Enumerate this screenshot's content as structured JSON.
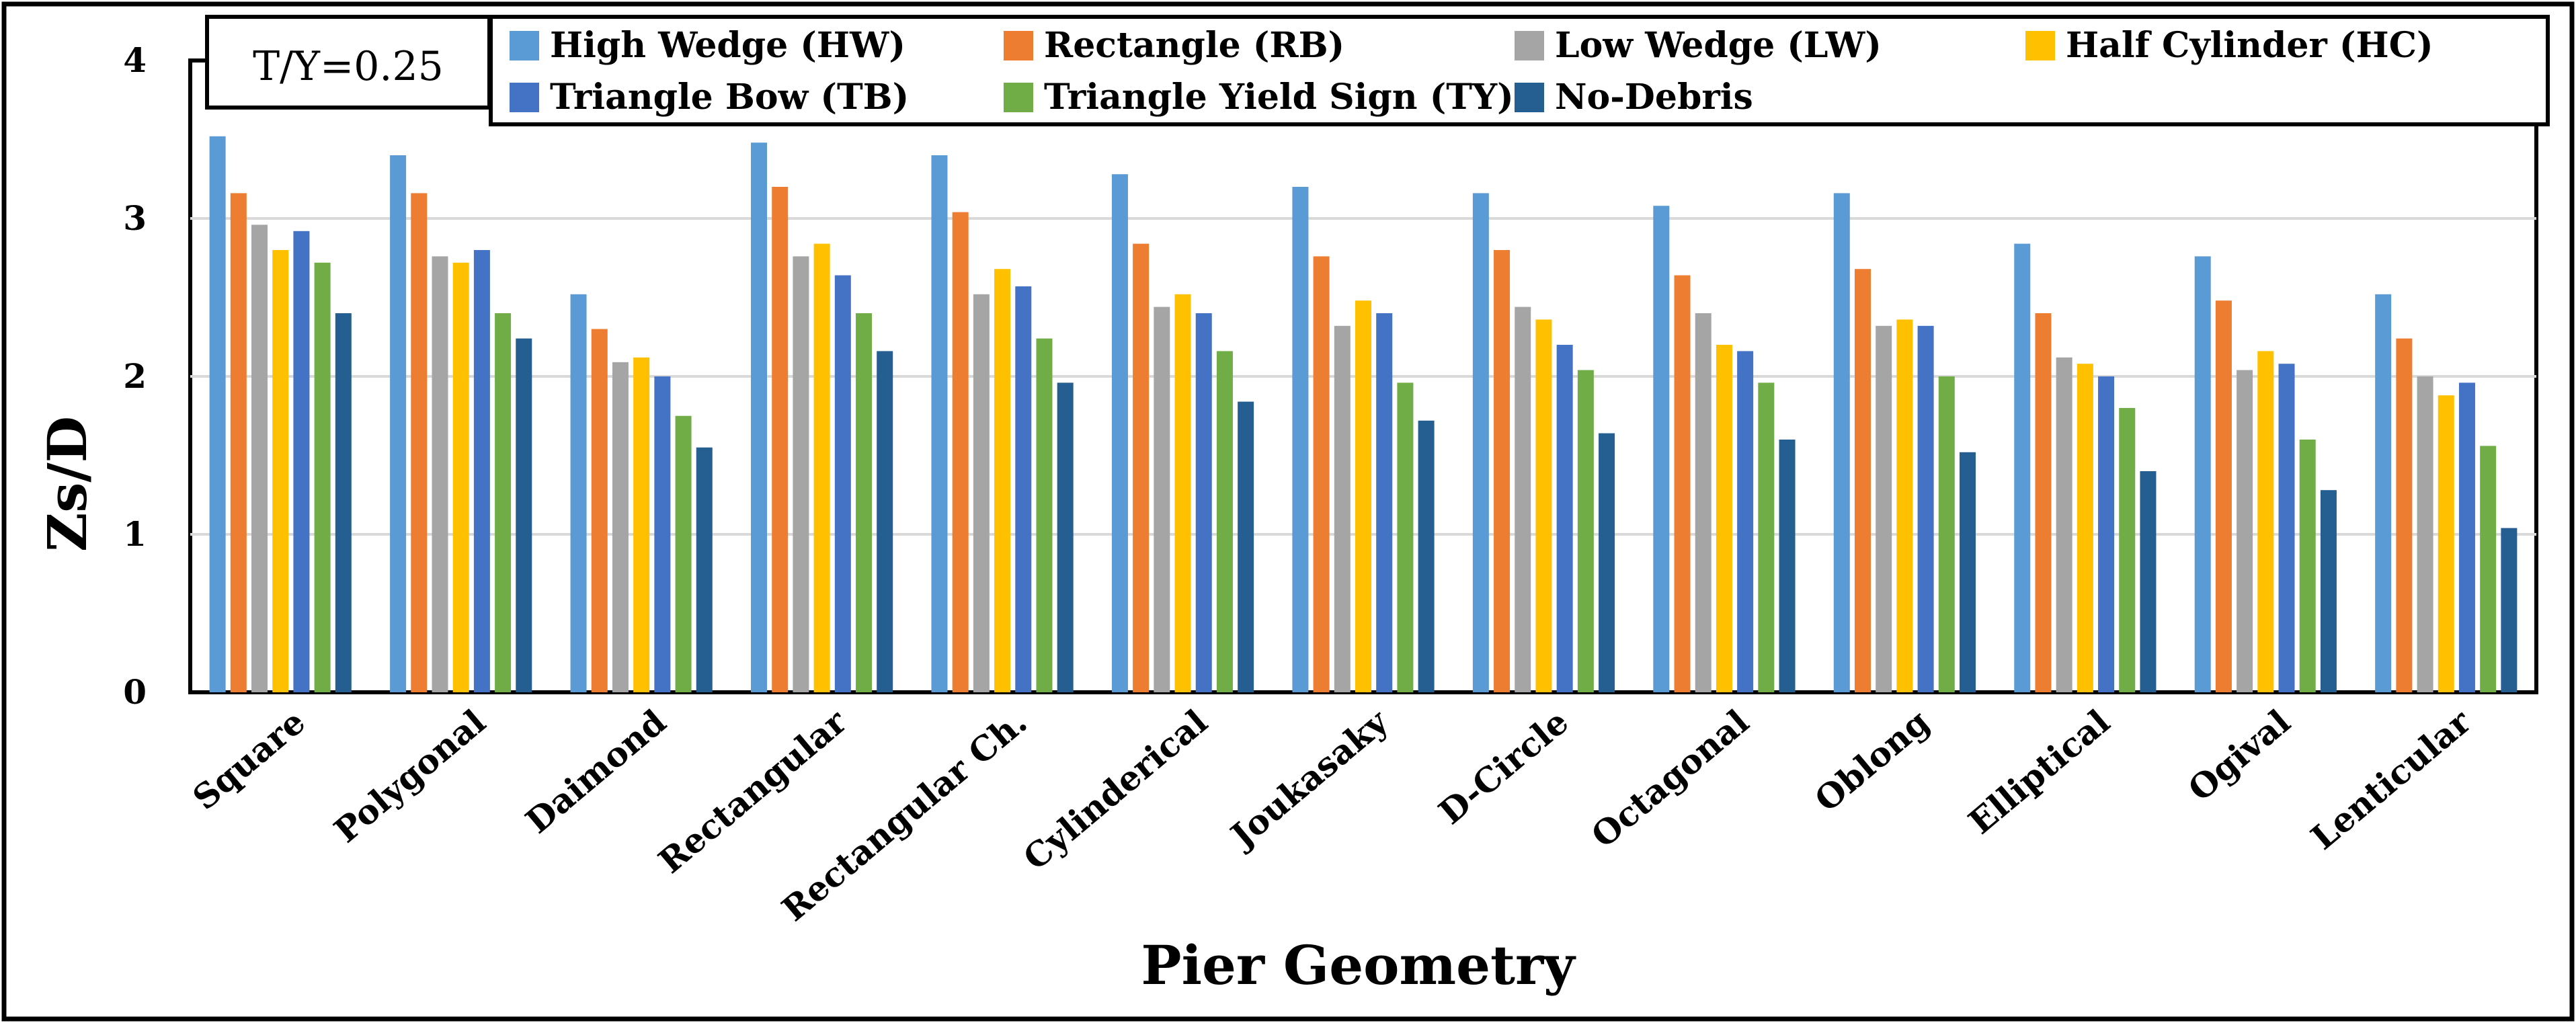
{
  "chart_data": {
    "type": "bar",
    "annotation": "T/Y=0.25",
    "xlabel": "Pier Geometry",
    "ylabel": "Zs/D",
    "ylim": [
      0,
      4
    ],
    "yticks": [
      "0",
      "1",
      "2",
      "3",
      "4"
    ],
    "grid": "horizontal",
    "legend_position": "top",
    "categories": [
      "Square",
      "Polygonal",
      "Daimond",
      "Rectangular",
      "Rectangular Ch.",
      "Cylinderical",
      "Joukasaky",
      "D-Circle",
      "Octagonal",
      "Oblong",
      "Elliptical",
      "Ogival",
      "Lenticular"
    ],
    "series": [
      {
        "name": "High Wedge (HW)",
        "color": "#5b9bd5",
        "values": [
          3.52,
          3.4,
          2.52,
          3.48,
          3.4,
          3.28,
          3.2,
          3.16,
          3.08,
          3.16,
          2.84,
          2.76,
          2.52
        ]
      },
      {
        "name": "Rectangle (RB)",
        "color": "#ed7d31",
        "values": [
          3.16,
          3.16,
          2.3,
          3.2,
          3.04,
          2.84,
          2.76,
          2.8,
          2.64,
          2.68,
          2.4,
          2.48,
          2.24
        ]
      },
      {
        "name": "Low Wedge (LW)",
        "color": "#a5a5a5",
        "values": [
          2.96,
          2.76,
          2.09,
          2.76,
          2.52,
          2.44,
          2.32,
          2.44,
          2.4,
          2.32,
          2.12,
          2.04,
          2.0
        ]
      },
      {
        "name": "Half Cylinder (HC)",
        "color": "#ffc000",
        "values": [
          2.8,
          2.72,
          2.12,
          2.84,
          2.68,
          2.52,
          2.48,
          2.36,
          2.2,
          2.36,
          2.08,
          2.16,
          1.88
        ]
      },
      {
        "name": "Triangle Bow (TB)",
        "color": "#4472c4",
        "values": [
          2.92,
          2.8,
          2.0,
          2.64,
          2.57,
          2.4,
          2.4,
          2.2,
          2.16,
          2.32,
          2.0,
          2.08,
          1.96
        ]
      },
      {
        "name": "Triangle Yield Sign (TY)",
        "color": "#70ad47",
        "values": [
          2.72,
          2.4,
          1.75,
          2.4,
          2.24,
          2.16,
          1.96,
          2.04,
          1.96,
          2.0,
          1.8,
          1.6,
          1.56
        ]
      },
      {
        "name": "No-Debris",
        "color": "#255e91",
        "values": [
          2.4,
          2.24,
          1.55,
          2.16,
          1.96,
          1.84,
          1.72,
          1.64,
          1.6,
          1.52,
          1.4,
          1.28,
          1.04
        ]
      }
    ]
  }
}
